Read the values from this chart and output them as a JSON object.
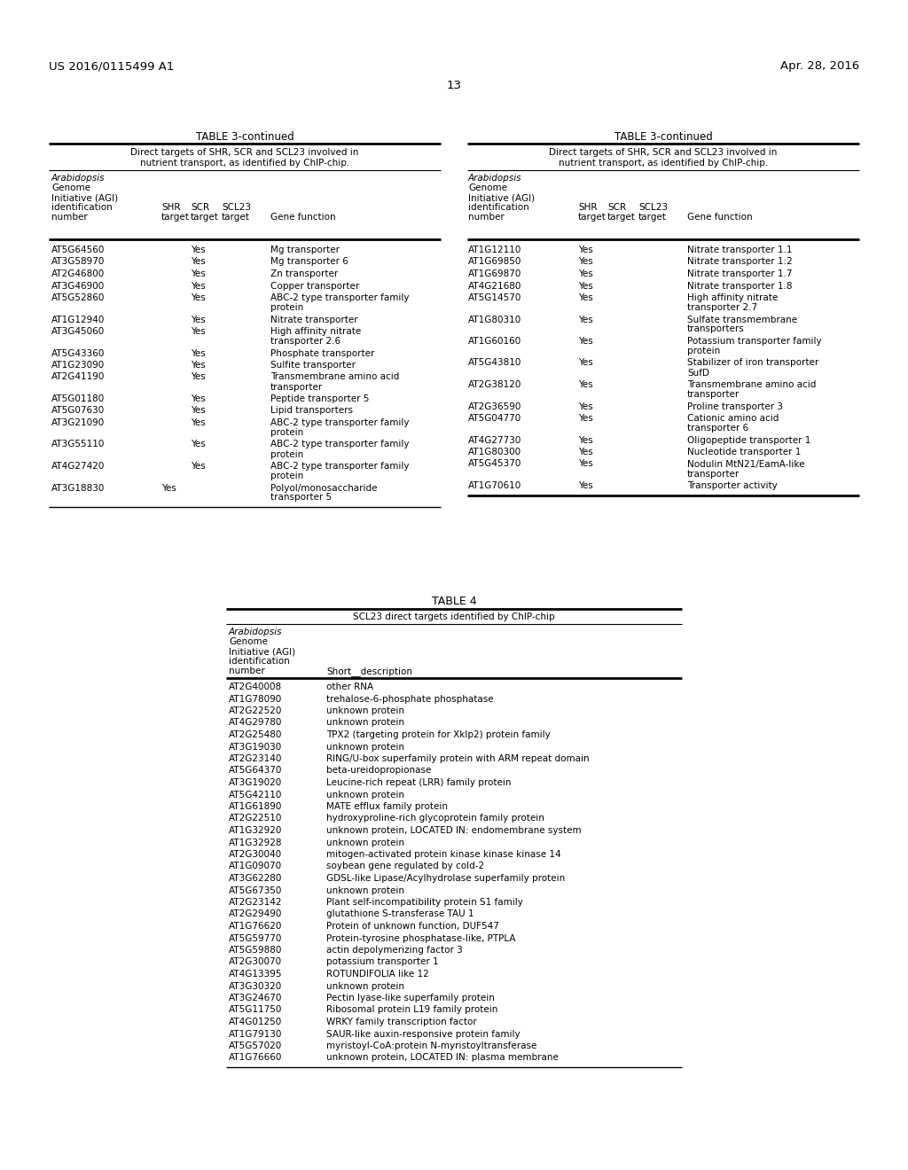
{
  "header_left": "US 2016/0115499 A1",
  "header_right": "Apr. 28, 2016",
  "page_number": "13",
  "table3_title": "TABLE 3-continued",
  "table3_subtitle1": "Direct targets of SHR, SCR and SCL23 involved in",
  "table3_subtitle2": "nutrient transport, as identified by ChIP-chip.",
  "table3_left_data": [
    [
      "AT5G64560",
      "",
      "Yes",
      "",
      "Mg transporter"
    ],
    [
      "AT3G58970",
      "",
      "Yes",
      "",
      "Mg transporter 6"
    ],
    [
      "AT2G46800",
      "",
      "Yes",
      "",
      "Zn transporter"
    ],
    [
      "AT3G46900",
      "",
      "Yes",
      "",
      "Copper transporter"
    ],
    [
      "AT5G52860",
      "",
      "Yes",
      "",
      "ABC-2 type transporter family\nprotein"
    ],
    [
      "AT1G12940",
      "",
      "Yes",
      "",
      "Nitrate transporter"
    ],
    [
      "AT3G45060",
      "",
      "Yes",
      "",
      "High affinity nitrate\ntransporter 2.6"
    ],
    [
      "AT5G43360",
      "",
      "Yes",
      "",
      "Phosphate transporter"
    ],
    [
      "AT1G23090",
      "",
      "Yes",
      "",
      "Sulfite transporter"
    ],
    [
      "AT2G41190",
      "",
      "Yes",
      "",
      "Transmembrane amino acid\ntransporter"
    ],
    [
      "AT5G01180",
      "",
      "Yes",
      "",
      "Peptide transporter 5"
    ],
    [
      "AT5G07630",
      "",
      "Yes",
      "",
      "Lipid transporters"
    ],
    [
      "AT3G21090",
      "",
      "Yes",
      "",
      "ABC-2 type transporter family\nprotein"
    ],
    [
      "AT3G55110",
      "",
      "Yes",
      "",
      "ABC-2 type transporter family\nprotein"
    ],
    [
      "AT4G27420",
      "",
      "Yes",
      "",
      "ABC-2 type transporter family\nprotein"
    ],
    [
      "AT3G18830",
      "Yes",
      "",
      "",
      "Polyol/monosaccharide\ntransporter 5"
    ]
  ],
  "table3_right_data": [
    [
      "AT1G12110",
      "Yes",
      "",
      "",
      "Nitrate transporter 1.1"
    ],
    [
      "AT1G69850",
      "Yes",
      "",
      "",
      "Nitrate transporter 1:2"
    ],
    [
      "AT1G69870",
      "Yes",
      "",
      "",
      "Nitrate transporter 1.7"
    ],
    [
      "AT4G21680",
      "Yes",
      "",
      "",
      "Nitrate transporter 1.8"
    ],
    [
      "AT5G14570",
      "Yes",
      "",
      "",
      "High affinity nitrate\ntransporter 2.7"
    ],
    [
      "AT1G80310",
      "Yes",
      "",
      "",
      "Sulfate transmembrane\ntransporters"
    ],
    [
      "AT1G60160",
      "Yes",
      "",
      "",
      "Potassium transporter family\nprotein"
    ],
    [
      "AT5G43810",
      "Yes",
      "",
      "",
      "Stabilizer of iron transporter\nSufD"
    ],
    [
      "AT2G38120",
      "Yes",
      "",
      "",
      "Transmembrane amino acid\ntransporter"
    ],
    [
      "AT2G36590",
      "Yes",
      "",
      "",
      "Proline transporter 3"
    ],
    [
      "AT5G04770",
      "Yes",
      "",
      "",
      "Cationic amino acid\ntransporter 6"
    ],
    [
      "AT4G27730",
      "Yes",
      "",
      "",
      "Oligopeptide transporter 1"
    ],
    [
      "AT1G80300",
      "Yes",
      "",
      "",
      "Nucleotide transporter 1"
    ],
    [
      "AT5G45370",
      "Yes",
      "",
      "",
      "Nodulin MtN21/EamA-like\ntransporter"
    ],
    [
      "AT1G70610",
      "Yes",
      "",
      "",
      "Transporter activity"
    ]
  ],
  "table4_title": "TABLE 4",
  "table4_subtitle": "SCL23 direct targets identified by ChIP-chip",
  "table4_data": [
    [
      "AT2G40008",
      "other RNA"
    ],
    [
      "AT1G78090",
      "trehalose-6-phosphate phosphatase"
    ],
    [
      "AT2G22520",
      "unknown protein"
    ],
    [
      "AT4G29780",
      "unknown protein"
    ],
    [
      "AT2G25480",
      "TPX2 (targeting protein for Xklp2) protein family"
    ],
    [
      "AT3G19030",
      "unknown protein"
    ],
    [
      "AT2G23140",
      "RING/U-box superfamily protein with ARM repeat domain"
    ],
    [
      "AT5G64370",
      "beta-ureidopropionase"
    ],
    [
      "AT3G19020",
      "Leucine-rich repeat (LRR) family protein"
    ],
    [
      "AT5G42110",
      "unknown protein"
    ],
    [
      "AT1G61890",
      "MATE efflux family protein"
    ],
    [
      "AT2G22510",
      "hydroxyproline-rich glycoprotein family protein"
    ],
    [
      "AT1G32920",
      "unknown protein, LOCATED IN: endomembrane system"
    ],
    [
      "AT1G32928",
      "unknown protein"
    ],
    [
      "AT2G30040",
      "mitogen-activated protein kinase kinase kinase 14"
    ],
    [
      "AT1G09070",
      "soybean gene regulated by cold-2"
    ],
    [
      "AT3G62280",
      "GDSL-like Lipase/Acylhydrolase superfamily protein"
    ],
    [
      "AT5G67350",
      "unknown protein"
    ],
    [
      "AT2G23142",
      "Plant self-incompatibility protein S1 family"
    ],
    [
      "AT2G29490",
      "glutathione S-transferase TAU 1"
    ],
    [
      "AT1G76620",
      "Protein of unknown function, DUF547"
    ],
    [
      "AT5G59770",
      "Protein-tyrosine phosphatase-like, PTPLA"
    ],
    [
      "AT5G59880",
      "actin depolymerizing factor 3"
    ],
    [
      "AT2G30070",
      "potassium transporter 1"
    ],
    [
      "AT4G13395",
      "ROTUNDIFOLIA like 12"
    ],
    [
      "AT3G30320",
      "unknown protein"
    ],
    [
      "AT3G24670",
      "Pectin lyase-like superfamily protein"
    ],
    [
      "AT5G11750",
      "Ribosomal protein L19 family protein"
    ],
    [
      "AT4G01250",
      "WRKY family transcription factor"
    ],
    [
      "AT1G79130",
      "SAUR-like auxin-responsive protein family"
    ],
    [
      "AT5G57020",
      "myristoyl-CoA:protein N-myristoyltransferase"
    ],
    [
      "AT1G76660",
      "unknown protein, LOCATED IN: plasma membrane"
    ]
  ]
}
